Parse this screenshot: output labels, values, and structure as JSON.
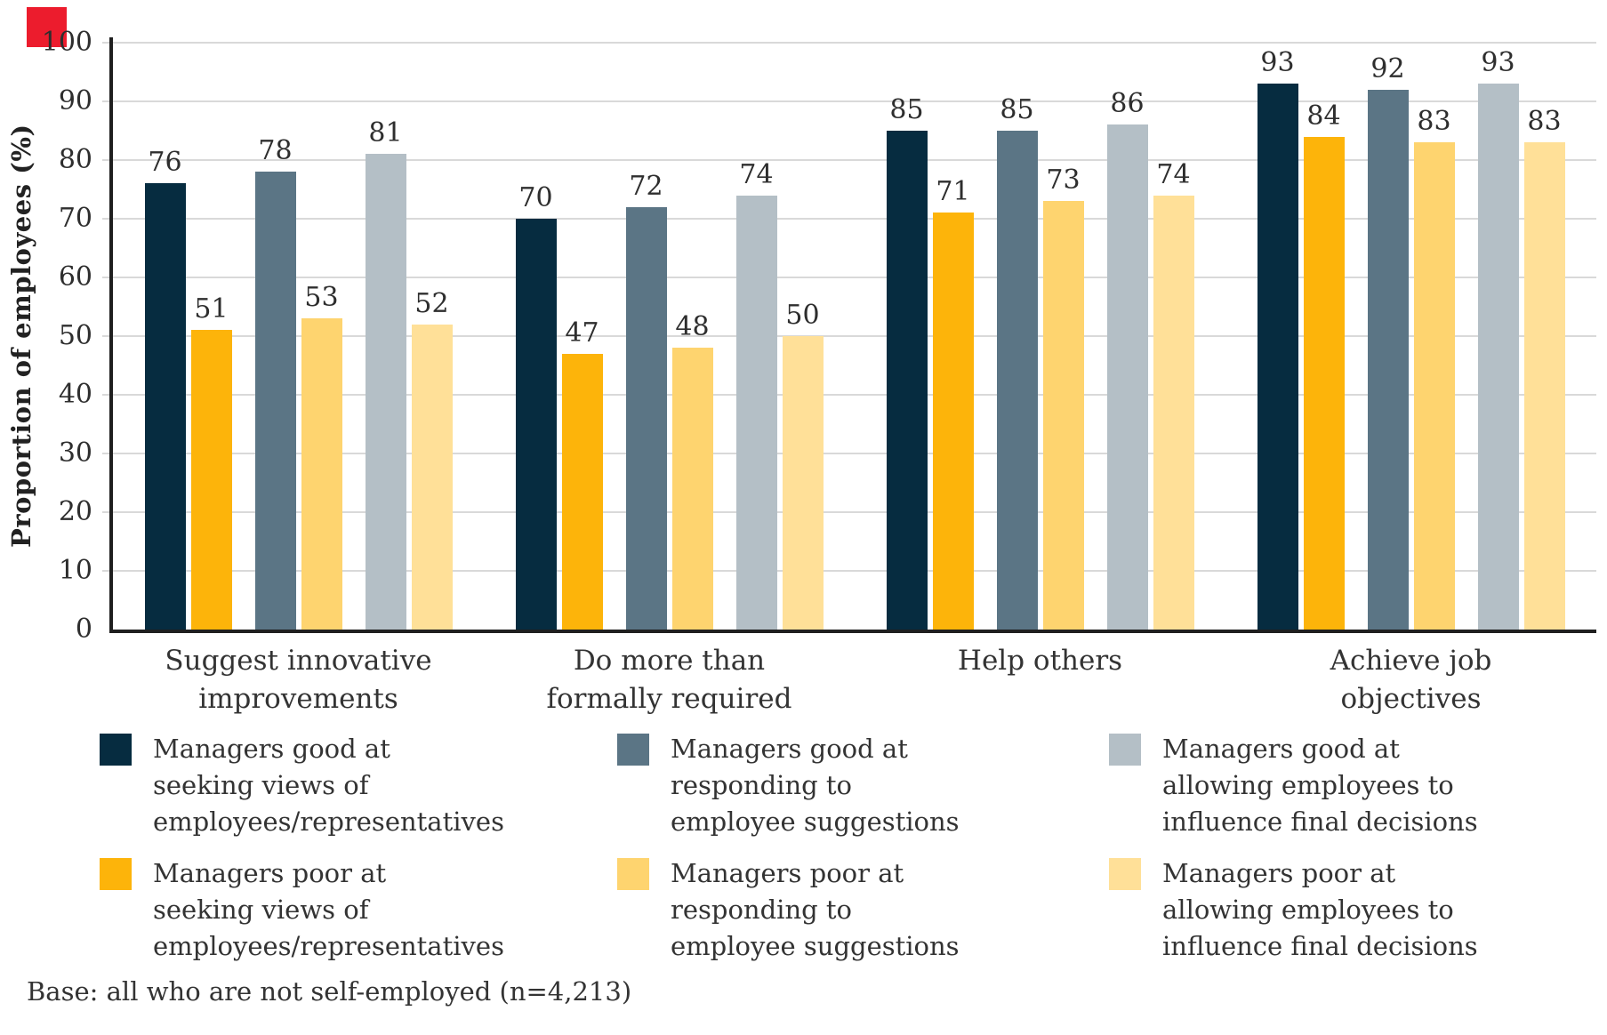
{
  "decoration": {
    "red_square_color": "#ec1c2d"
  },
  "colors": {
    "axis": "#1f1f1f",
    "gridline": "#d9d9d9",
    "text": "#333333"
  },
  "chart_data": {
    "type": "bar",
    "title": "",
    "ylabel": "Proportion of employees (%)",
    "xlabel": "",
    "ylim": [
      0,
      100
    ],
    "yticks": [
      0,
      10,
      20,
      30,
      40,
      50,
      60,
      70,
      80,
      90,
      100
    ],
    "grid": true,
    "legend_position": "bottom",
    "categories": [
      "Suggest innovative\nimprovements",
      "Do more than\nformally required",
      "Help others",
      "Achieve job\nobjectives"
    ],
    "series": [
      {
        "name": "Managers good at seeking views of employees/representatives",
        "color": "#062c40",
        "values": [
          76,
          70,
          85,
          93
        ]
      },
      {
        "name": "Managers poor at seeking views of employees/representatives",
        "color": "#fdb40a",
        "values": [
          51,
          47,
          71,
          84
        ]
      },
      {
        "name": "Managers good at responding to employee suggestions",
        "color": "#5b7585",
        "values": [
          78,
          72,
          85,
          92
        ]
      },
      {
        "name": "Managers poor at responding to employee suggestions",
        "color": "#fed46f",
        "values": [
          53,
          48,
          73,
          83
        ]
      },
      {
        "name": "Managers good at allowing employees to influence final decisions",
        "color": "#b4bfc6",
        "values": [
          81,
          74,
          86,
          93
        ]
      },
      {
        "name": "Managers poor at allowing employees to influence final decisions",
        "color": "#ffe098",
        "values": [
          52,
          50,
          74,
          83
        ]
      }
    ]
  },
  "legend": {
    "items": [
      {
        "key": "good-seeking",
        "color": "#062c40",
        "label": "Managers good at\nseeking views of\nemployees/representatives"
      },
      {
        "key": "good-responding",
        "color": "#5b7585",
        "label": "Managers good at\nresponding to\nemployee suggestions"
      },
      {
        "key": "good-allowing",
        "color": "#b4bfc6",
        "label": "Managers good at\nallowing employees to\ninfluence final decisions"
      },
      {
        "key": "poor-seeking",
        "color": "#fdb40a",
        "label": "Managers poor at\nseeking views of\nemployees/representatives"
      },
      {
        "key": "poor-responding",
        "color": "#fed46f",
        "label": "Managers poor at\nresponding to\nemployee suggestions"
      },
      {
        "key": "poor-allowing",
        "color": "#ffe098",
        "label": "Managers poor at\nallowing employees to\ninfluence final decisions"
      }
    ]
  },
  "footer": {
    "base_note": "Base: all who are not self-employed (n=4,213)"
  }
}
